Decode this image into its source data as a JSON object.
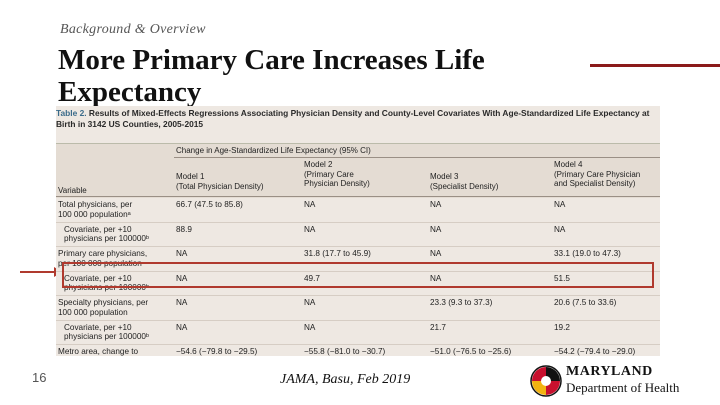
{
  "slide": {
    "kicker": "Background & Overview",
    "title": "More Primary Care Increases Life Expectancy",
    "page_number": "16",
    "source": "JAMA, Basu, Feb 2019",
    "accent_color": "#8b1a1a",
    "highlight_color": "#b03a2e"
  },
  "table": {
    "title_lead": "Table 2.",
    "title_rest": "Results of Mixed-Effects Regressions Associating Physician Density and County-Level Covariates With Age-Standardized Life Expectancy at Birth in 3142 US Counties, 2005-2015",
    "span_header": "Change in Age-Standardized Life Expectancy (95% CI)",
    "columns": [
      "Variable",
      "Model 1\n(Total Physician Density)",
      "Model 2\n(Primary Care\nPhysician Density)",
      "Model 3\n(Specialist Density)",
      "Model 4\n(Primary Care Physician\nand Specialist Density)"
    ],
    "rows": [
      {
        "variable": "Total physicians, per\n100 000 populationᵃ",
        "m1": "66.7 (47.5 to 85.8)",
        "m2": "NA",
        "m3": "NA",
        "m4": "NA"
      },
      {
        "variable": "  Covariate, per +10\n  physicians per 100000ᵇ",
        "m1": "88.9",
        "m2": "NA",
        "m3": "NA",
        "m4": "NA"
      },
      {
        "variable": "Primary care physicians,\nper 100 000 population",
        "m1": "NA",
        "m2": "31.8 (17.7 to 45.9)",
        "m3": "NA",
        "m4": "33.1 (19.0 to 47.3)"
      },
      {
        "variable": "  Covariate, per +10\n  physicians per 100000ᵇ",
        "m1": "NA",
        "m2": "49.7",
        "m3": "NA",
        "m4": "51.5"
      },
      {
        "variable": "Specialty physicians, per\n100 000 population",
        "m1": "NA",
        "m2": "NA",
        "m3": "23.3 (9.3 to 37.3)",
        "m4": "20.6 (7.5 to 33.6)"
      },
      {
        "variable": "  Covariate, per +10\n  physicians per 100000ᵇ",
        "m1": "NA",
        "m2": "NA",
        "m3": "21.7",
        "m4": "19.2"
      },
      {
        "variable": "Metro area, change to\nnonmetro area, d",
        "m1": "−54.6 (−79.8 to −29.5)",
        "m2": "−55.8 (−81.0 to −30.7)",
        "m3": "−51.0 (−76.5 to −25.6)",
        "m4": "−54.2 (−79.4 to −29.0)"
      }
    ]
  },
  "logo": {
    "line1": "MARYLAND",
    "line2": "Department of Health"
  }
}
